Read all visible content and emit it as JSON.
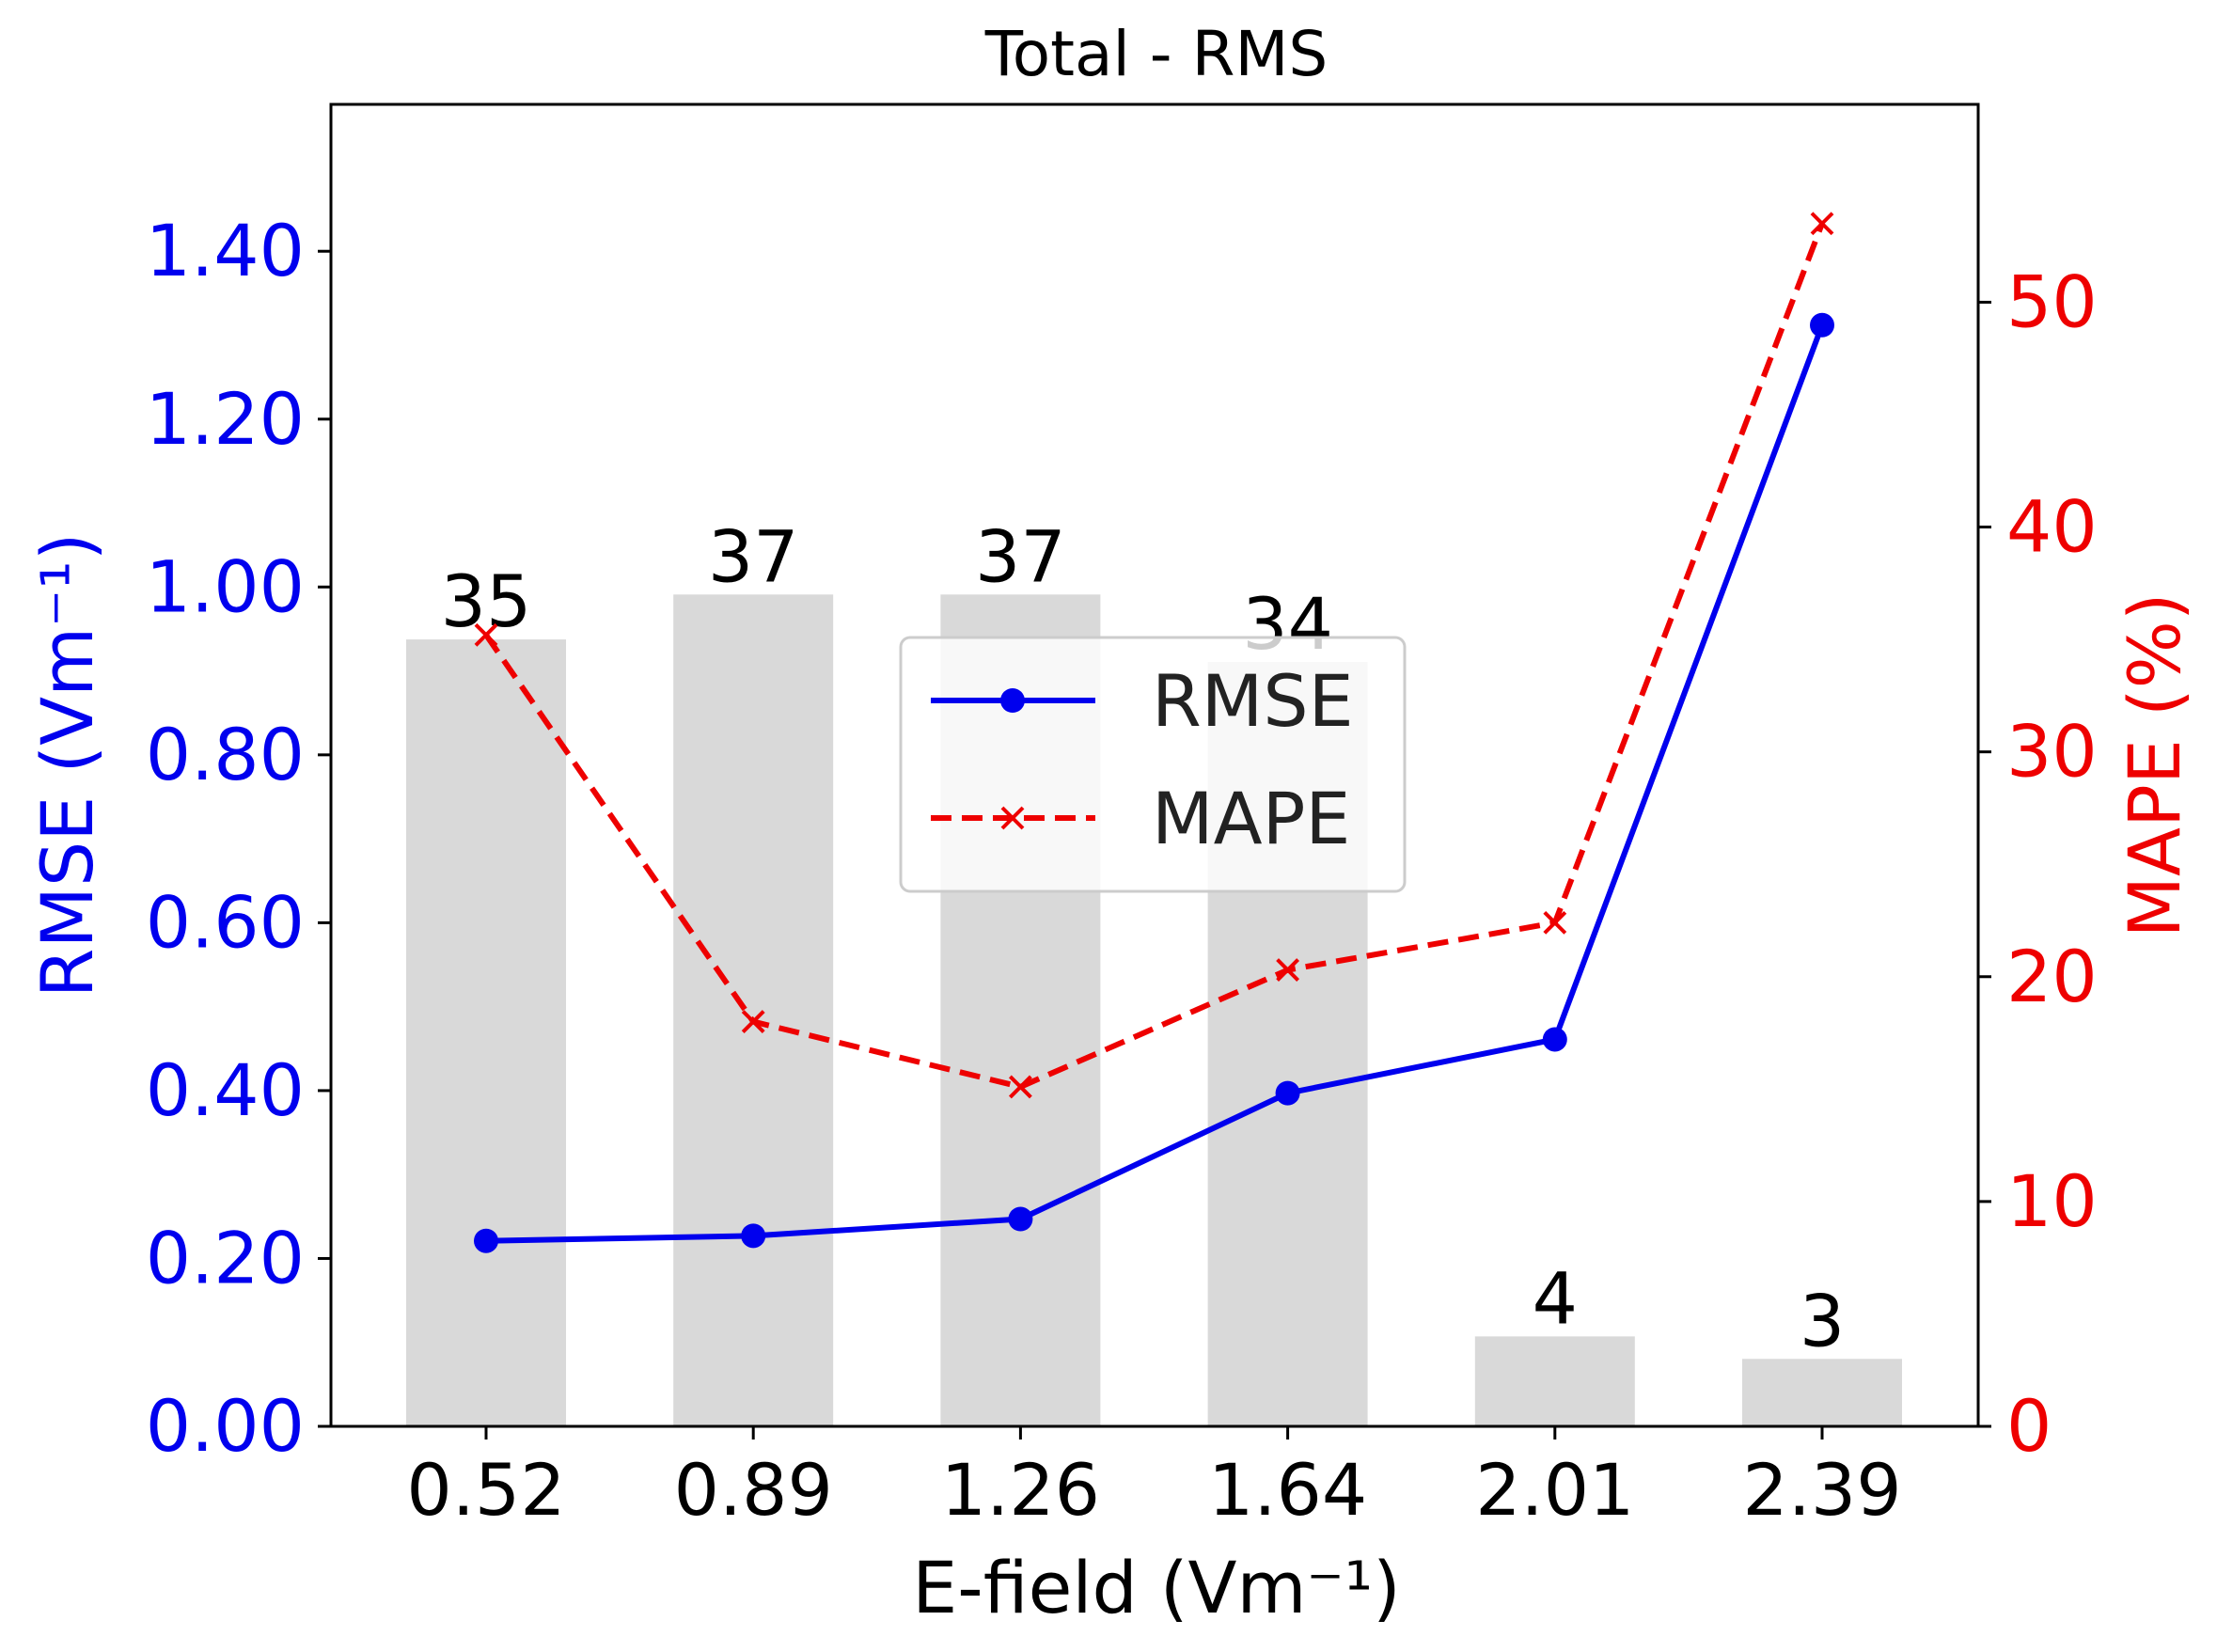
{
  "chart_data": {
    "type": "bar+line",
    "title": "Total - RMS",
    "xlabel": "E-field (Vm⁻¹)",
    "ylabel_left": "RMSE (Vm⁻¹)",
    "ylabel_right": "MAPE (%)",
    "categories": [
      "0.52",
      "0.89",
      "1.26",
      "1.64",
      "2.01",
      "2.39"
    ],
    "bar_counts": [
      35,
      37,
      37,
      34,
      4,
      3
    ],
    "bar_count_labels": [
      "35",
      "37",
      "37",
      "34",
      "4",
      "3"
    ],
    "series": [
      {
        "name": "RMSE",
        "axis": "left",
        "values": [
          0.221,
          0.227,
          0.247,
          0.397,
          0.461,
          1.312
        ],
        "color": "#0000ee",
        "style": "solid",
        "marker": "circle"
      },
      {
        "name": "MAPE",
        "axis": "right",
        "values": [
          35.2,
          18.0,
          15.1,
          20.3,
          22.4,
          53.5
        ],
        "color": "#ee0000",
        "style": "dashed",
        "marker": "x"
      }
    ],
    "ylim_left": [
      0,
      1.575
    ],
    "ylim_right": [
      0,
      58.8
    ],
    "yticks_left": [
      "0.00",
      "0.20",
      "0.40",
      "0.60",
      "0.80",
      "1.00",
      "1.20",
      "1.40"
    ],
    "yticks_right": [
      "0",
      "10",
      "20",
      "30",
      "40",
      "50"
    ],
    "legend": {
      "placement": "center",
      "entries": [
        "RMSE",
        "MAPE"
      ]
    },
    "grid": false,
    "colors": {
      "bars": "#d9d9d9",
      "left_axis": "#0000ee",
      "right_axis": "#ee0000",
      "text": "#000000"
    }
  }
}
